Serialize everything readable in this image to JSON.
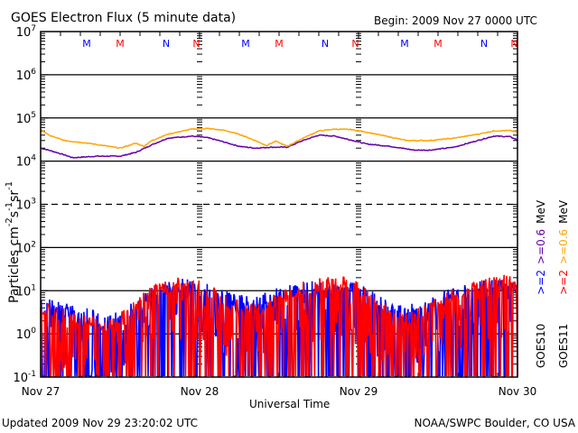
{
  "chart_data": {
    "type": "line",
    "title": "GOES Electron Flux (5 minute data)",
    "begin_label": "Begin: 2009 Nov 27 0000 UTC",
    "xlabel": "Universal Time",
    "ylabel": "Particles cm",
    "ylabel_sup": [
      "-2",
      "-1",
      "-1"
    ],
    "ylabel_parts": [
      "Particles cm",
      "s",
      "sr"
    ],
    "yscale": "log",
    "ylim_exp": [
      -1,
      7
    ],
    "y_ticks": [
      {
        "base": "10",
        "exp": "7"
      },
      {
        "base": "10",
        "exp": "6"
      },
      {
        "base": "10",
        "exp": "5"
      },
      {
        "base": "10",
        "exp": "4"
      },
      {
        "base": "10",
        "exp": "3"
      },
      {
        "base": "10",
        "exp": "2"
      },
      {
        "base": "10",
        "exp": "1"
      },
      {
        "base": "10",
        "exp": "0"
      },
      {
        "base": "10",
        "exp": "-1"
      }
    ],
    "x_ticks": [
      "Nov 27",
      "Nov 28",
      "Nov 29",
      "Nov 30"
    ],
    "xlim_days": [
      0,
      3
    ],
    "thresholds": [
      {
        "exp": 6,
        "style": "solid"
      },
      {
        "exp": 5,
        "style": "solid"
      },
      {
        "exp": 4,
        "style": "solid"
      },
      {
        "exp": 3,
        "style": "dashed"
      },
      {
        "exp": 2,
        "style": "solid"
      },
      {
        "exp": 1,
        "style": "solid"
      },
      {
        "exp": 0,
        "style": "solid"
      }
    ],
    "markers": [
      {
        "label": "M",
        "day": 0.29,
        "color": "#0000ff"
      },
      {
        "label": "M",
        "day": 0.5,
        "color": "#ff0000"
      },
      {
        "label": "N",
        "day": 0.79,
        "color": "#0000ff"
      },
      {
        "label": "N",
        "day": 0.98,
        "color": "#ff0000"
      },
      {
        "label": "M",
        "day": 1.29,
        "color": "#0000ff"
      },
      {
        "label": "M",
        "day": 1.5,
        "color": "#ff0000"
      },
      {
        "label": "N",
        "day": 1.79,
        "color": "#0000ff"
      },
      {
        "label": "N",
        "day": 1.98,
        "color": "#ff0000"
      },
      {
        "label": "M",
        "day": 2.29,
        "color": "#0000ff"
      },
      {
        "label": "M",
        "day": 2.5,
        "color": "#ff0000"
      },
      {
        "label": "N",
        "day": 2.79,
        "color": "#0000ff"
      },
      {
        "label": "N",
        "day": 2.98,
        "color": "#ff0000"
      }
    ],
    "series": [
      {
        "name": "GOES11 >=0.6 MeV",
        "color": "#ffa500",
        "x_days": [
          0,
          0.05,
          0.15,
          0.3,
          0.5,
          0.6,
          0.65,
          0.7,
          0.8,
          0.95,
          1.05,
          1.15,
          1.25,
          1.35,
          1.42,
          1.48,
          1.55,
          1.65,
          1.75,
          1.85,
          1.95,
          2.05,
          2.2,
          2.3,
          2.45,
          2.6,
          2.75,
          2.85,
          2.95,
          3.0
        ],
        "values": [
          55000,
          40000,
          30000,
          26000,
          20000,
          26000,
          22000,
          30000,
          42000,
          55000,
          57000,
          52000,
          42000,
          30000,
          23000,
          29000,
          22000,
          34000,
          50000,
          55000,
          54000,
          47000,
          36000,
          30000,
          30000,
          34000,
          42000,
          50000,
          51000,
          47000
        ]
      },
      {
        "name": "GOES10 >=0.6 MeV",
        "color": "#6600aa",
        "x_days": [
          0,
          0.05,
          0.15,
          0.2,
          0.35,
          0.5,
          0.6,
          0.7,
          0.8,
          0.95,
          1.05,
          1.15,
          1.25,
          1.35,
          1.45,
          1.55,
          1.65,
          1.75,
          1.85,
          1.95,
          2.05,
          2.2,
          2.35,
          2.45,
          2.6,
          2.75,
          2.85,
          2.95,
          3.0
        ],
        "values": [
          20000,
          18000,
          14000,
          12000,
          13000,
          13000,
          16000,
          24000,
          34000,
          38000,
          35000,
          28000,
          22000,
          20000,
          21000,
          21000,
          30000,
          40000,
          38000,
          31000,
          25000,
          22000,
          18000,
          18000,
          21000,
          30000,
          38000,
          37000,
          31000
        ]
      },
      {
        "name": "GOES10 >=2 MeV",
        "color": "#0000ff",
        "x_days": [
          0,
          0.1,
          0.25,
          0.4,
          0.55,
          0.7,
          0.8,
          0.9,
          1.0,
          1.1,
          1.2,
          1.3,
          1.4,
          1.5,
          1.6,
          1.7,
          1.8,
          1.9,
          2.0,
          2.1,
          2.2,
          2.3,
          2.4,
          2.5,
          2.6,
          2.7,
          2.8,
          2.9,
          3.0
        ],
        "values": [
          5,
          4,
          3,
          2,
          3,
          8,
          12,
          13,
          11,
          9,
          6,
          5,
          6,
          8,
          10,
          11,
          12,
          12,
          10,
          6,
          4,
          3,
          4,
          6,
          8,
          10,
          12,
          13,
          12
        ]
      },
      {
        "name": "GOES11 >=2 MeV",
        "color": "#ff0000",
        "x_days": [
          0,
          0.1,
          0.25,
          0.4,
          0.55,
          0.7,
          0.8,
          0.9,
          1.0,
          1.1,
          1.2,
          1.3,
          1.4,
          1.5,
          1.6,
          1.7,
          1.8,
          1.9,
          2.0,
          2.1,
          2.2,
          2.3,
          2.4,
          2.5,
          2.6,
          2.7,
          2.8,
          2.9,
          3.0
        ],
        "values": [
          4,
          3,
          2,
          1.5,
          3,
          9,
          13,
          14,
          12,
          8,
          5,
          3,
          4,
          6,
          10,
          12,
          14,
          14,
          11,
          5,
          3,
          2,
          3,
          5,
          8,
          11,
          14,
          16,
          15
        ]
      }
    ],
    "legend": {
      "placement": "right",
      "goes10_label": "GOES10",
      "goes11_label": "GOES11",
      "goes10_e2": ">=2",
      "goes10_e06": ">=0.6",
      "goes11_e2": ">=2",
      "goes11_e06": ">=0.6",
      "unit": "MeV"
    }
  },
  "footer": {
    "updated": "Updated 2009 Nov 29 23:20:02 UTC",
    "credit": "NOAA/SWPC Boulder, CO USA"
  },
  "colors": {
    "goes10_e2": "#0000ff",
    "goes11_e2": "#ff0000",
    "goes10_e06": "#6600aa",
    "goes11_e06": "#ffa500"
  }
}
